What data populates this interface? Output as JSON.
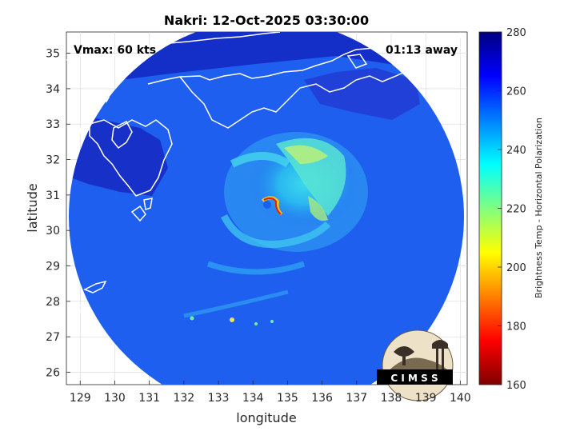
{
  "title": "Nakri: 12-Oct-2025 03:30:00",
  "vmax_label": "Vmax: 60 kts",
  "time_away_label": "01:13 away",
  "xlabel": "longitude",
  "ylabel": "latitude",
  "x_ticks": [
    "129",
    "130",
    "131",
    "132",
    "133",
    "134",
    "135",
    "136",
    "137",
    "138",
    "139",
    "140"
  ],
  "y_ticks": [
    "26",
    "27",
    "28",
    "29",
    "30",
    "31",
    "32",
    "33",
    "34",
    "35"
  ],
  "colorbar": {
    "label": "Brightness Temp - Horizontal Polarization",
    "ticks": [
      "160",
      "180",
      "200",
      "220",
      "240",
      "260",
      "280"
    ],
    "range": [
      160,
      280
    ],
    "colors": [
      "#7f0000",
      "#ff0000",
      "#ff8000",
      "#ffff00",
      "#80ff80",
      "#00ffff",
      "#0080ff",
      "#0000ff",
      "#00007f"
    ]
  },
  "logo_text": "C I M S S",
  "chart_data": {
    "type": "heatmap",
    "title": "Nakri: 12-Oct-2025 03:30:00",
    "xlabel": "longitude",
    "ylabel": "latitude",
    "xlim": [
      128.6,
      140.2
    ],
    "ylim": [
      25.65,
      35.6
    ],
    "storm_center": [
      134.55,
      30.7
    ],
    "grid": true
  }
}
